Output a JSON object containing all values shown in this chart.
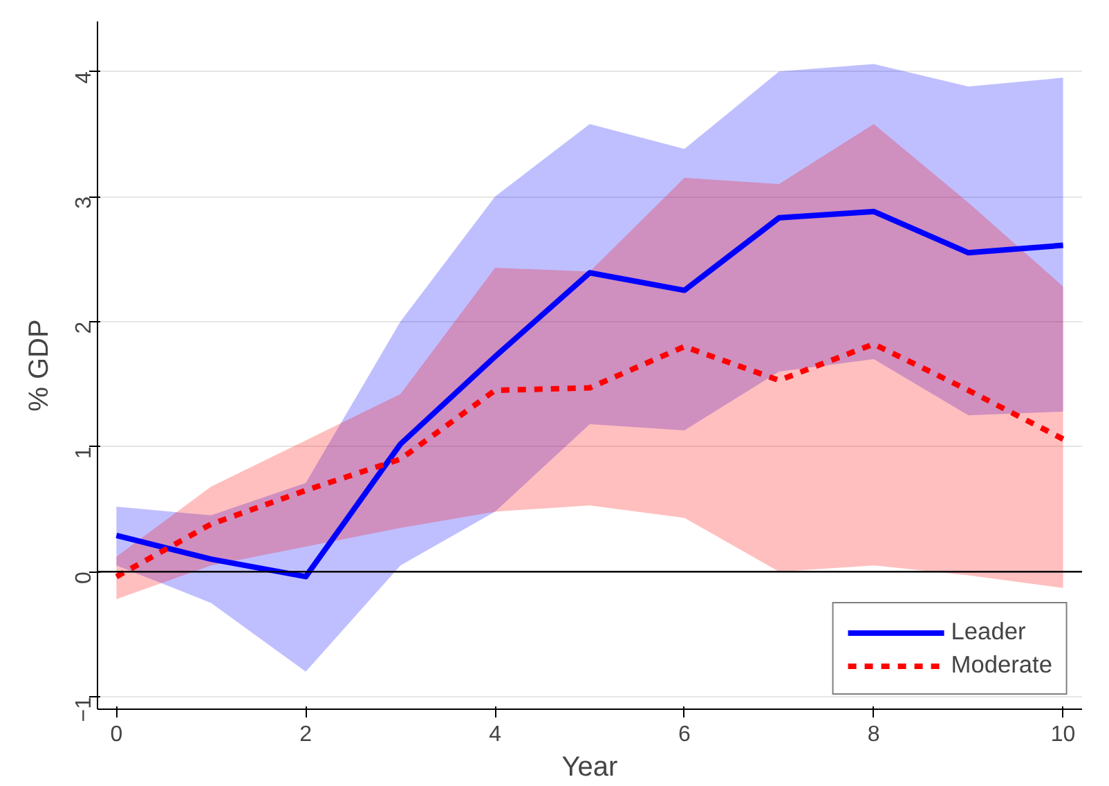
{
  "chart_data": {
    "type": "line",
    "xlabel": "Year",
    "ylabel": "% GDP",
    "x": [
      0,
      1,
      2,
      3,
      4,
      5,
      6,
      7,
      8,
      9,
      10
    ],
    "series": [
      {
        "name": "Leader",
        "color": "#0000ff",
        "line_style": "solid",
        "values": [
          0.29,
          0.1,
          -0.04,
          1.02,
          1.72,
          2.39,
          2.25,
          2.83,
          2.88,
          2.55,
          2.61
        ],
        "lower": [
          0.05,
          -0.25,
          -0.8,
          0.05,
          0.48,
          1.18,
          1.13,
          1.6,
          1.7,
          1.25,
          1.28
        ],
        "upper": [
          0.52,
          0.45,
          0.71,
          2.0,
          3.0,
          3.58,
          3.38,
          4.0,
          4.06,
          3.88,
          3.95
        ]
      },
      {
        "name": "Moderate",
        "color": "#ff0000",
        "line_style": "dashed",
        "values": [
          -0.04,
          0.38,
          0.65,
          0.9,
          1.45,
          1.47,
          1.8,
          1.53,
          1.82,
          1.45,
          1.06
        ],
        "lower": [
          -0.22,
          0.05,
          0.2,
          0.35,
          0.48,
          0.53,
          0.43,
          0.0,
          0.05,
          -0.03,
          -0.13
        ],
        "upper": [
          0.12,
          0.68,
          1.05,
          1.42,
          2.43,
          2.4,
          3.15,
          3.1,
          3.58,
          2.95,
          2.28
        ]
      }
    ],
    "xlim": [
      -0.2,
      10.2
    ],
    "ylim": [
      -1.1,
      4.4
    ],
    "xticks": [
      0,
      2,
      4,
      6,
      8,
      10
    ],
    "yticks": [
      -1,
      0,
      1,
      2,
      3,
      4
    ],
    "ref_lines": [
      {
        "axis": "y",
        "value": 0,
        "color": "#000000"
      }
    ],
    "grid": "y",
    "legend": "bottom right"
  }
}
